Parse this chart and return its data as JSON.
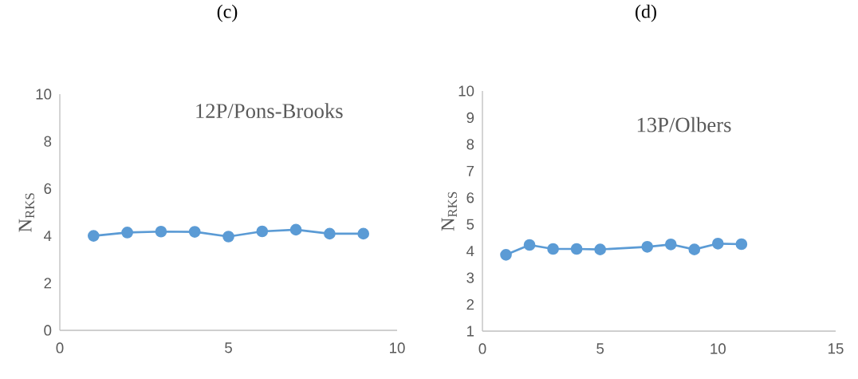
{
  "chart_data": [
    {
      "type": "line",
      "title": "(c)",
      "ylabel": "N$_{RKS}$",
      "annotations": [
        "12P/Pons-Brooks"
      ],
      "x": [
        1,
        2,
        3,
        4,
        5,
        6,
        7,
        8,
        9
      ],
      "series": [
        {
          "color": "#5b9bd5",
          "values": [
            4.0,
            4.14,
            4.18,
            4.17,
            3.97,
            4.19,
            4.26,
            4.09,
            4.09
          ]
        }
      ],
      "xlim": [
        0,
        10
      ],
      "xticks": [
        0,
        5,
        10
      ],
      "ylim": [
        0,
        10
      ],
      "yticks": [
        0,
        2,
        4,
        6,
        8,
        10
      ],
      "marker": "circle",
      "line_style": "solid"
    },
    {
      "type": "line",
      "title": "(d)",
      "ylabel": "N$_{RKS}$",
      "annotations": [
        "13P/Olbers"
      ],
      "x": [
        1,
        2,
        3,
        4,
        5,
        7,
        8,
        9,
        10,
        11
      ],
      "series": [
        {
          "color": "#5b9bd5",
          "values": [
            3.86,
            4.23,
            4.08,
            4.08,
            4.06,
            4.16,
            4.25,
            4.06,
            4.28,
            4.26
          ]
        }
      ],
      "xlim": [
        0,
        15
      ],
      "xticks": [
        0,
        5,
        10,
        15
      ],
      "ylim": [
        1,
        10
      ],
      "yticks": [
        1,
        2,
        3,
        4,
        5,
        6,
        7,
        8,
        9,
        10
      ],
      "marker": "circle",
      "line_style": "solid"
    }
  ]
}
